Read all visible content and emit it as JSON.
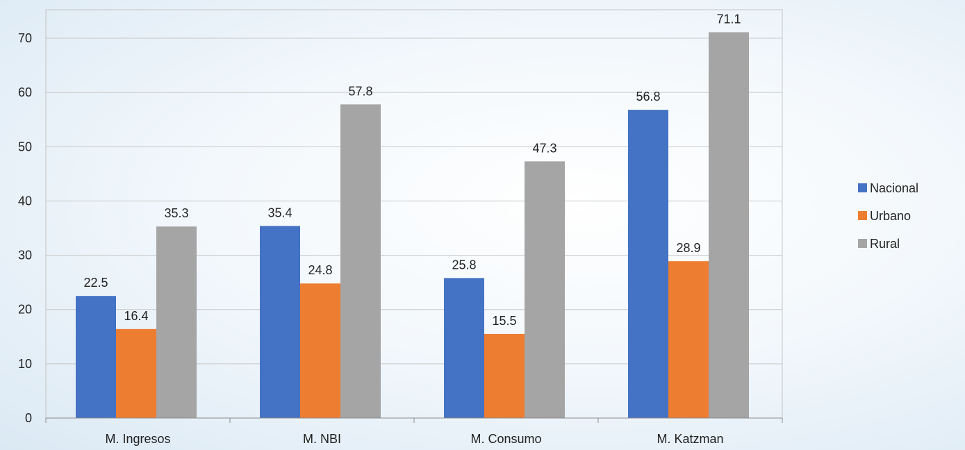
{
  "chart_data": {
    "type": "bar",
    "categories": [
      "M. Ingresos",
      "M. NBI",
      "M. Consumo",
      "M. Katzman"
    ],
    "series": [
      {
        "name": "Nacional",
        "values": [
          22.5,
          35.4,
          25.8,
          56.8
        ],
        "color": "#4472C4"
      },
      {
        "name": "Urbano",
        "values": [
          16.4,
          24.8,
          15.5,
          28.9
        ],
        "color": "#ED7D31"
      },
      {
        "name": "Rural",
        "values": [
          35.3,
          57.8,
          47.3,
          71.1
        ],
        "color": "#A5A5A5"
      }
    ],
    "ylim": [
      0,
      70
    ],
    "yticks": [
      0,
      10,
      20,
      30,
      40,
      50,
      60,
      70
    ],
    "grid": true,
    "legend_position": "right",
    "data_labels": true
  }
}
